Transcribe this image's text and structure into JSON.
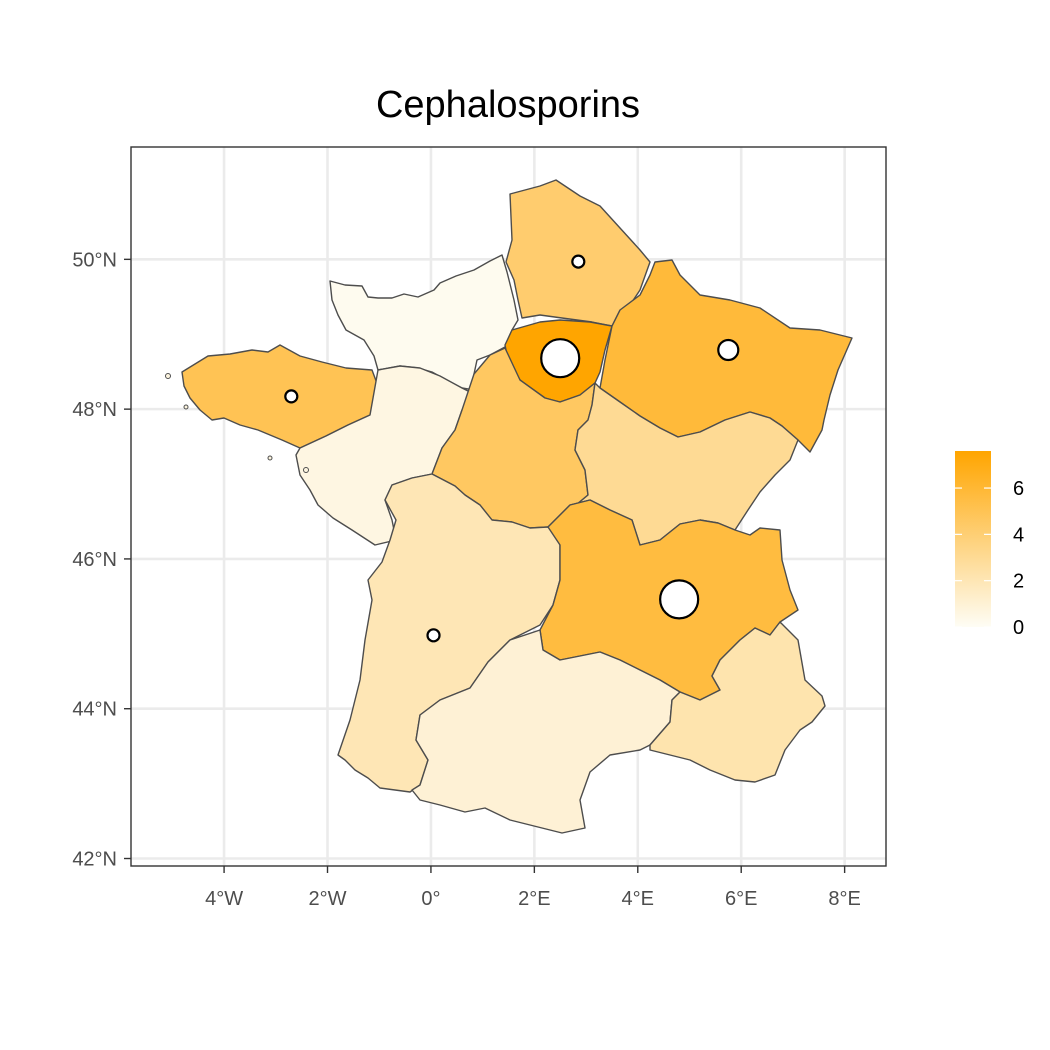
{
  "title": "Cephalosporins",
  "axes": {
    "x_ticks": [
      {
        "label": "4°W",
        "value": -4
      },
      {
        "label": "2°W",
        "value": -2
      },
      {
        "label": "0°",
        "value": 0
      },
      {
        "label": "2°E",
        "value": 2
      },
      {
        "label": "4°E",
        "value": 4
      },
      {
        "label": "6°E",
        "value": 6
      },
      {
        "label": "8°E",
        "value": 8
      }
    ],
    "y_ticks": [
      {
        "label": "50°N",
        "value": 50
      },
      {
        "label": "48°N",
        "value": 48
      },
      {
        "label": "46°N",
        "value": 46
      },
      {
        "label": "44°N",
        "value": 44
      },
      {
        "label": "42°N",
        "value": 42
      }
    ],
    "xlim": [
      -5.8,
      8.8
    ],
    "ylim": [
      41.9,
      51.5
    ]
  },
  "legend": {
    "position": "right",
    "ticks": [
      {
        "label": "6",
        "value": 6
      },
      {
        "label": "4",
        "value": 4
      },
      {
        "label": "2",
        "value": 2
      },
      {
        "label": "0",
        "value": 0
      }
    ],
    "range": [
      0,
      7.6
    ],
    "color_low": "#fefdf5",
    "color_high": "#ffa500"
  },
  "chart_data": {
    "type": "choropleth",
    "grid": true,
    "regions": [
      {
        "id": "hauts-de-france",
        "value": 4.2
      },
      {
        "id": "normandie",
        "value": 0.2
      },
      {
        "id": "ile-de-france",
        "value": 7.6
      },
      {
        "id": "grand-est",
        "value": 5.8
      },
      {
        "id": "bretagne",
        "value": 5.0
      },
      {
        "id": "pays-de-la-loire",
        "value": 0.6
      },
      {
        "id": "centre-val-de-loire",
        "value": 4.6
      },
      {
        "id": "bourgogne-franche-comte",
        "value": 3.0
      },
      {
        "id": "nouvelle-aquitaine",
        "value": 2.0
      },
      {
        "id": "auvergne-rhone-alpes",
        "value": 5.6
      },
      {
        "id": "occitanie",
        "value": 1.0
      },
      {
        "id": "provence-alpes-cote-d-azur",
        "value": 2.2
      }
    ],
    "points": [
      {
        "lon": 2.85,
        "lat": 49.97,
        "size": 1
      },
      {
        "lon": 2.5,
        "lat": 48.68,
        "size": 5
      },
      {
        "lon": 5.75,
        "lat": 48.79,
        "size": 2
      },
      {
        "lon": -2.7,
        "lat": 48.17,
        "size": 1
      },
      {
        "lon": 0.05,
        "lat": 44.98,
        "size": 1
      },
      {
        "lon": 4.8,
        "lat": 45.46,
        "size": 5
      }
    ]
  }
}
